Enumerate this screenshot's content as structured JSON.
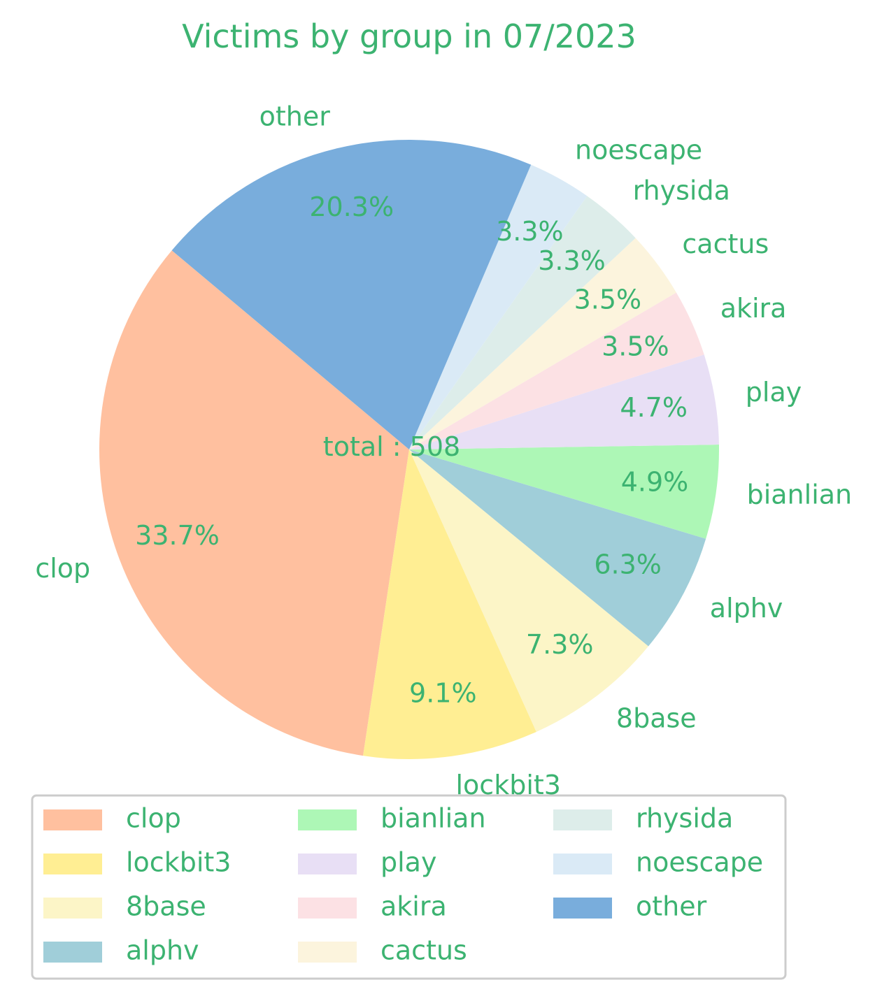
{
  "text_color": "#3cb371",
  "chart_data": {
    "type": "pie",
    "title": "Victims by group in 07/2023",
    "center_label": "total : 508",
    "slices": [
      {
        "label": "clop",
        "percent": "33.7%",
        "value": 33.7,
        "color": "#ffc09f"
      },
      {
        "label": "lockbit3",
        "percent": "9.1%",
        "value": 9.1,
        "color": "#ffee93"
      },
      {
        "label": "8base",
        "percent": "7.3%",
        "value": 7.3,
        "color": "#fcf5c7"
      },
      {
        "label": "alphv",
        "percent": "6.3%",
        "value": 6.3,
        "color": "#a0ced9"
      },
      {
        "label": "bianlian",
        "percent": "4.9%",
        "value": 4.9,
        "color": "#adf7b6"
      },
      {
        "label": "play",
        "percent": "4.7%",
        "value": 4.7,
        "color": "#e8dff5"
      },
      {
        "label": "akira",
        "percent": "3.5%",
        "value": 3.5,
        "color": "#fce1e4"
      },
      {
        "label": "cactus",
        "percent": "3.5%",
        "value": 3.5,
        "color": "#fcf4dd"
      },
      {
        "label": "rhysida",
        "percent": "3.3%",
        "value": 3.3,
        "color": "#ddedea"
      },
      {
        "label": "noescape",
        "percent": "3.3%",
        "value": 3.3,
        "color": "#daeaf6"
      },
      {
        "label": "other",
        "percent": "20.3%",
        "value": 20.3,
        "color": "#79addc"
      }
    ],
    "start_angle_deg": 140,
    "direction": "counterclockwise",
    "legend": {
      "placement": "bottom",
      "columns": [
        [
          "clop",
          "lockbit3",
          "8base",
          "alphv"
        ],
        [
          "bianlian",
          "play",
          "akira",
          "cactus"
        ],
        [
          "rhysida",
          "noescape",
          "other"
        ]
      ]
    }
  }
}
